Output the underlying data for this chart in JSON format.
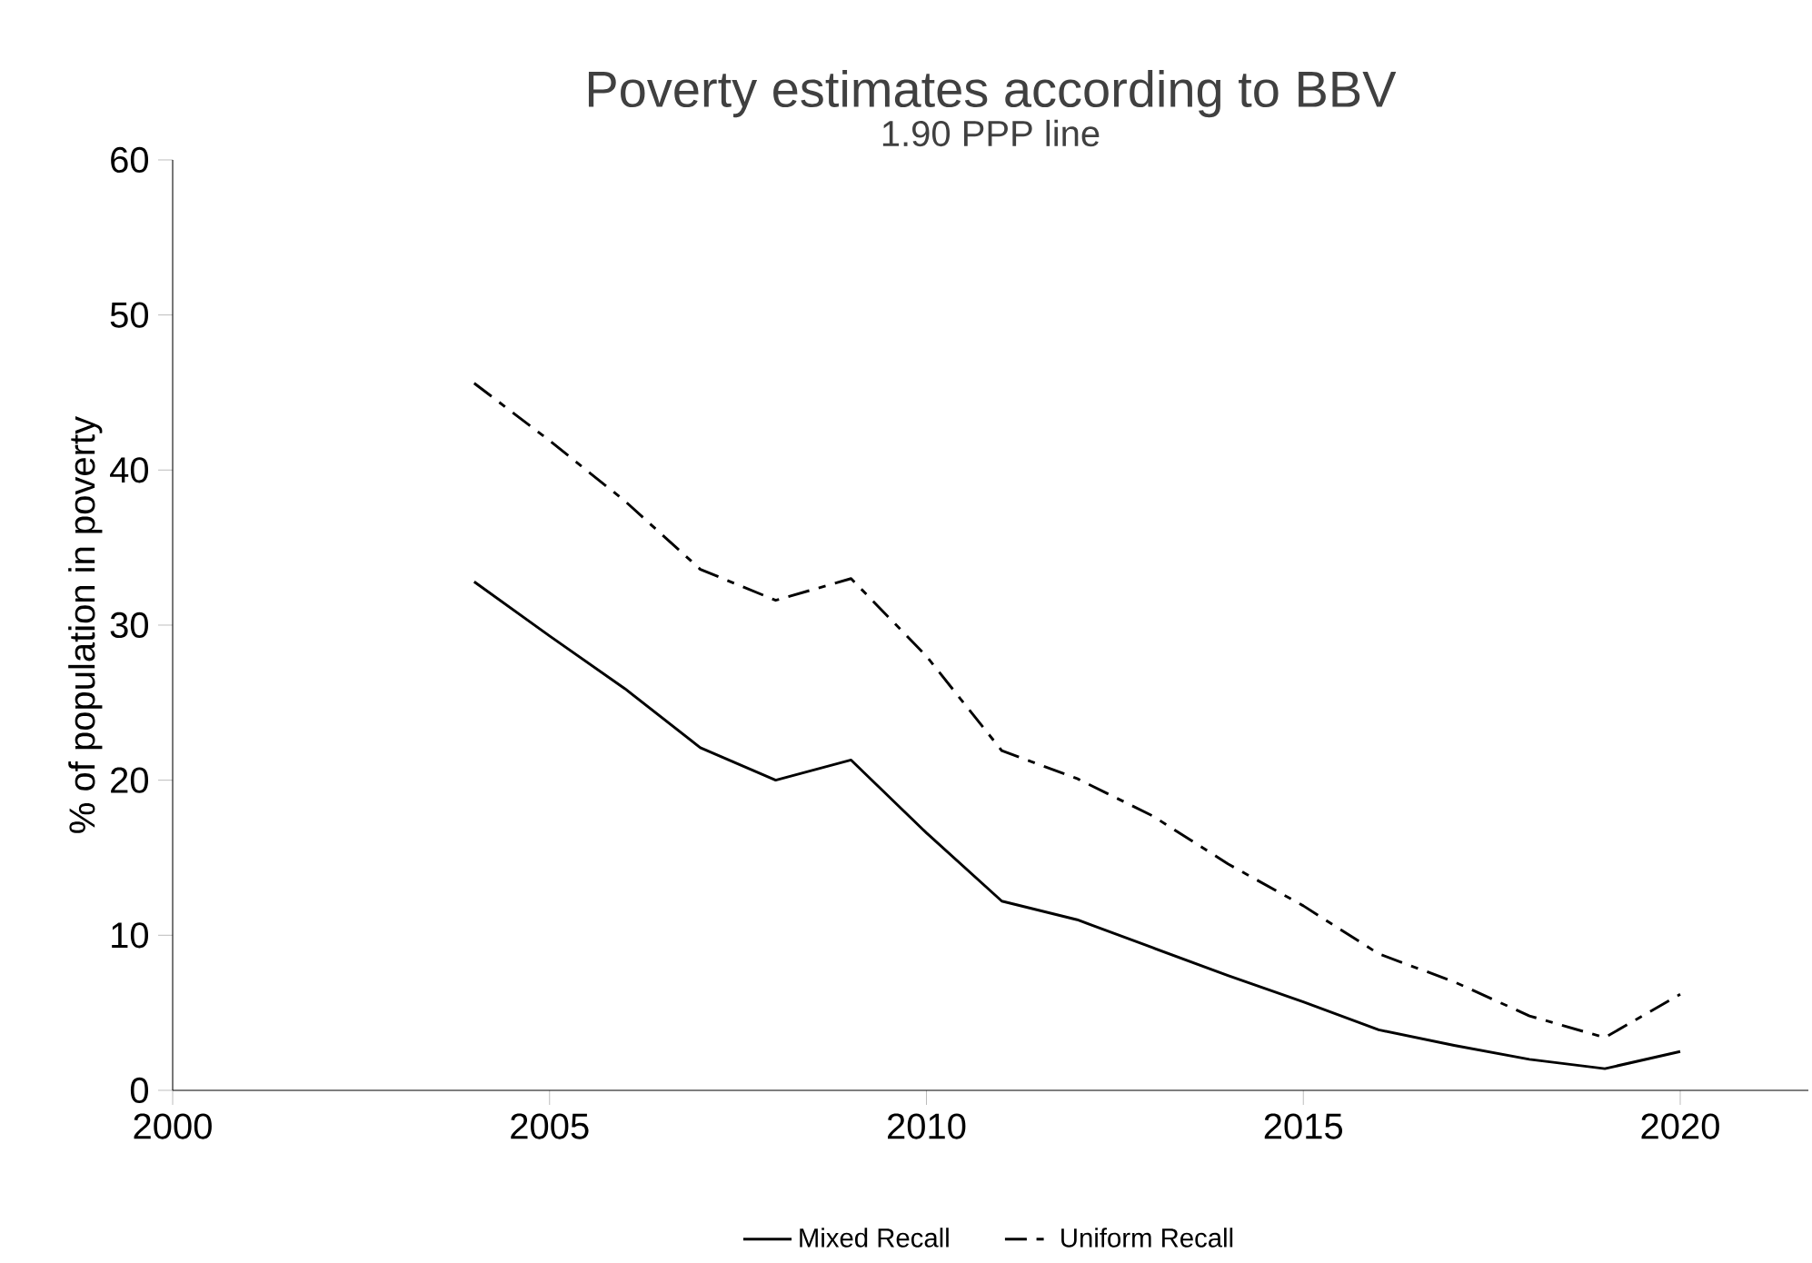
{
  "chart_data": {
    "type": "line",
    "title": "Poverty estimates according to BBV",
    "subtitle": "1.90 PPP line",
    "ylabel": "% of population in poverty",
    "x": [
      2004,
      2005,
      2006,
      2007,
      2008,
      2009,
      2010,
      2011,
      2012,
      2013,
      2014,
      2015,
      2016,
      2017,
      2018,
      2019,
      2020
    ],
    "series": [
      {
        "name": "Mixed Recall",
        "color": "#000000",
        "line_style": "solid",
        "values": [
          32.8,
          29.3,
          25.9,
          22.1,
          20.0,
          21.3,
          16.6,
          12.2,
          11.0,
          9.2,
          7.4,
          5.7,
          3.9,
          2.9,
          2.0,
          1.4,
          2.5
        ]
      },
      {
        "name": "Uniform Recall",
        "color": "#000000",
        "line_style": "dashed",
        "values": [
          45.6,
          41.9,
          38.0,
          33.6,
          31.6,
          33.0,
          28.0,
          21.9,
          20.1,
          17.7,
          14.6,
          11.9,
          8.8,
          7.0,
          4.8,
          3.4,
          6.2
        ]
      }
    ],
    "xlim": [
      2000,
      2021.7
    ],
    "ylim": [
      0,
      60
    ],
    "xticks": [
      2000,
      2005,
      2010,
      2015,
      2020
    ],
    "yticks": [
      0,
      10,
      20,
      30,
      40,
      50,
      60
    ],
    "grid": false,
    "legend": "bottom",
    "marker": "none"
  }
}
